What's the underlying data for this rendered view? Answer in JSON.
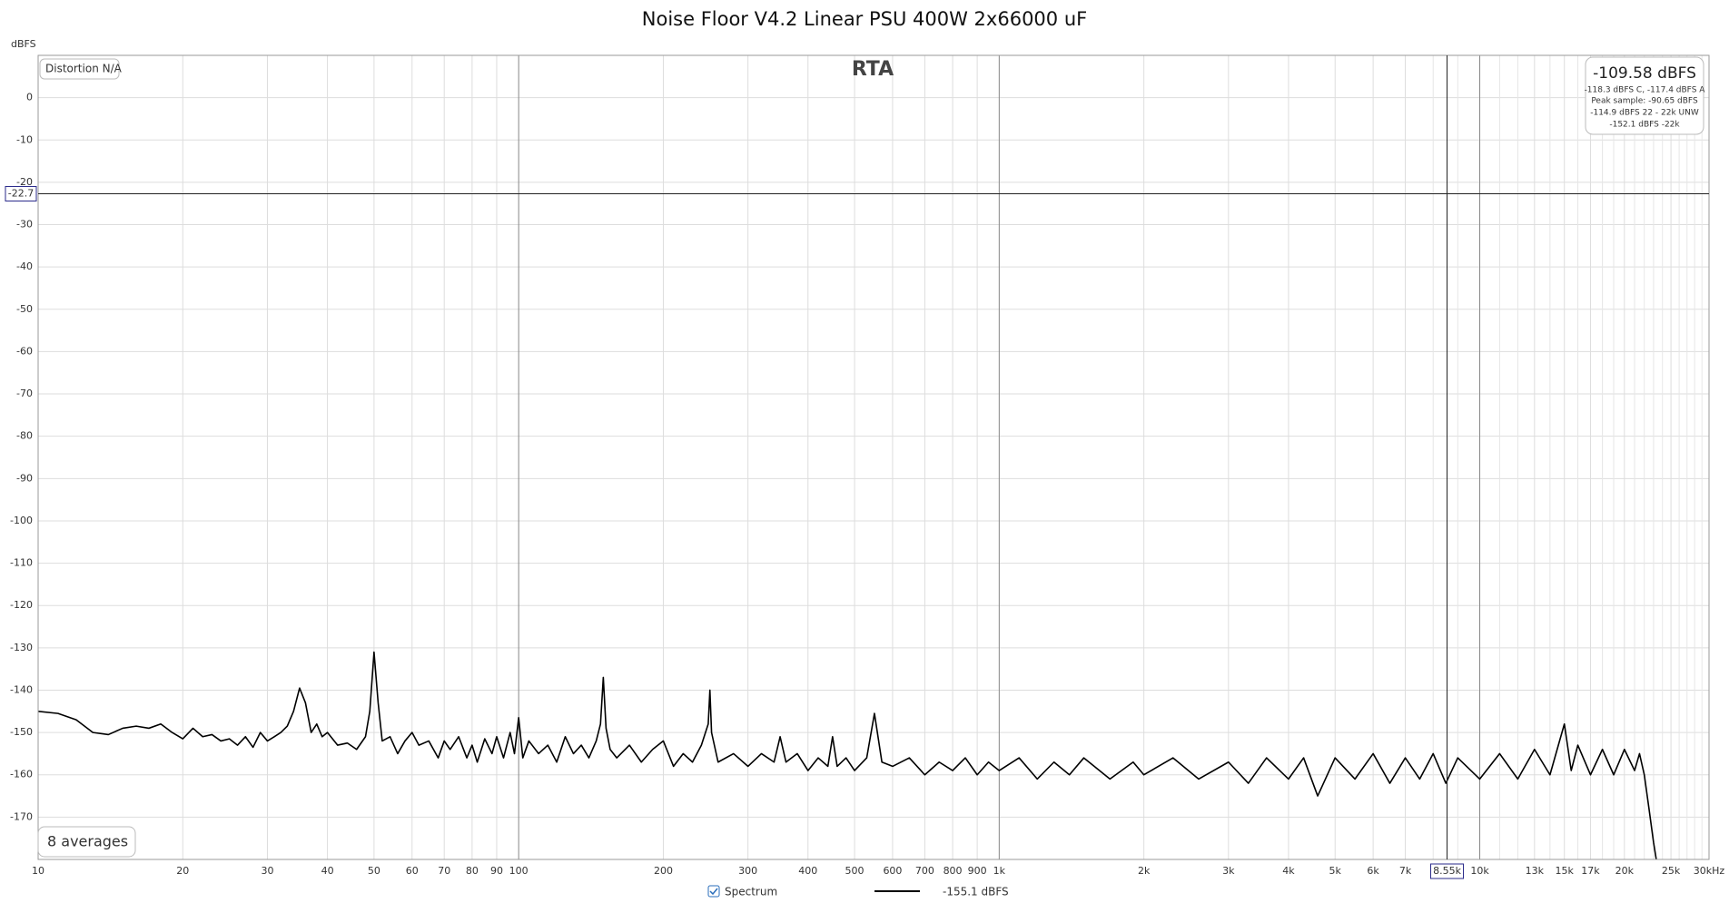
{
  "chart_data": {
    "type": "line",
    "title": "Noise Floor V4.2 Linear PSU 400W 2x66000 uF",
    "y_label": "dBFS",
    "log_x": true,
    "grid": true,
    "xlim": [
      10,
      30000
    ],
    "ylim": [
      -180,
      10
    ],
    "yticks": [
      0,
      -10,
      -20,
      -30,
      -40,
      -50,
      -60,
      -70,
      -80,
      -90,
      -100,
      -110,
      -120,
      -130,
      -140,
      -150,
      -160,
      -170
    ],
    "xticks": [
      10,
      20,
      30,
      40,
      50,
      60,
      70,
      80,
      90,
      100,
      200,
      300,
      400,
      500,
      600,
      700,
      800,
      900,
      {
        "value": 1000,
        "label": "1k"
      },
      {
        "value": 2000,
        "label": "2k"
      },
      {
        "value": 3000,
        "label": "3k"
      },
      {
        "value": 4000,
        "label": "4k"
      },
      {
        "value": 5000,
        "label": "5k"
      },
      {
        "value": 6000,
        "label": "6k"
      },
      {
        "value": 7000,
        "label": "7k"
      },
      {
        "value": 10000,
        "label": "10k"
      },
      {
        "value": 13000,
        "label": "13k"
      },
      {
        "value": 15000,
        "label": "15k"
      },
      {
        "value": 17000,
        "label": "17k"
      },
      {
        "value": 20000,
        "label": "20k"
      },
      {
        "value": 25000,
        "label": "25k"
      },
      {
        "value": 30000,
        "label": "30kHz"
      }
    ],
    "xgrid_minor": [
      8000,
      9000,
      11000,
      12000,
      14000,
      16000,
      18000,
      19000,
      21000,
      22000,
      23000,
      24000,
      26000,
      27000,
      28000,
      29000
    ],
    "cursor": {
      "x": {
        "value": 8550,
        "label": "8.55k"
      },
      "y": -22.7
    },
    "annotations": {
      "rta": "RTA",
      "distortion": "Distortion N/A",
      "averages": "8 averages",
      "level": "-109.58 dBFS",
      "weighted": "-118.3 dBFS C, -117.4 dBFS A",
      "peak": "Peak sample: -90.65 dBFS",
      "unweighted": "-114.9 dBFS 22 - 22k UNW",
      "band": "-152.1 dBFS -22k"
    },
    "legend_value": "-155.1 dBFS",
    "x": [
      10,
      11,
      12,
      13,
      14,
      15,
      16,
      17,
      18,
      19,
      20,
      21,
      22,
      23,
      24,
      25,
      26,
      27,
      28,
      29,
      30,
      31,
      32,
      33,
      34,
      35,
      36,
      37,
      38,
      39,
      40,
      42,
      44,
      46,
      48,
      49,
      50,
      51,
      52,
      54,
      56,
      58,
      60,
      62,
      65,
      68,
      70,
      72,
      75,
      78,
      80,
      82,
      85,
      88,
      90,
      93,
      96,
      98,
      100,
      102,
      105,
      110,
      115,
      120,
      125,
      130,
      135,
      140,
      145,
      148,
      150,
      152,
      155,
      160,
      170,
      180,
      190,
      200,
      210,
      220,
      230,
      240,
      248,
      250,
      252,
      260,
      280,
      300,
      320,
      340,
      350,
      360,
      380,
      400,
      420,
      440,
      450,
      460,
      480,
      500,
      530,
      550,
      570,
      600,
      650,
      700,
      750,
      800,
      850,
      900,
      950,
      1000,
      1100,
      1200,
      1300,
      1400,
      1500,
      1700,
      1900,
      2000,
      2300,
      2600,
      3000,
      3300,
      3600,
      4000,
      4300,
      4600,
      5000,
      5500,
      6000,
      6500,
      7000,
      7500,
      8000,
      8500,
      9000,
      10000,
      11000,
      12000,
      13000,
      14000,
      15000,
      15500,
      16000,
      17000,
      18000,
      19000,
      20000,
      21000,
      21500,
      22000,
      22500,
      23000,
      23300
    ],
    "series": [
      {
        "name": "Spectrum",
        "color": "#000000",
        "values": [
          -145,
          -145.5,
          -147,
          -150,
          -150.5,
          -149,
          -148.5,
          -149,
          -148,
          -150,
          -151.5,
          -149,
          -151,
          -150.5,
          -152,
          -151.5,
          -153,
          -151,
          -153.5,
          -150,
          -152,
          -151,
          -150,
          -148.5,
          -145,
          -139.5,
          -143,
          -150,
          -148,
          -151,
          -150,
          -153,
          -152.5,
          -154,
          -151,
          -145,
          -131,
          -143,
          -152,
          -151,
          -155,
          -152,
          -150,
          -153,
          -152,
          -156,
          -152,
          -154,
          -151,
          -156,
          -153,
          -157,
          -151.5,
          -155,
          -151,
          -156,
          -150,
          -155,
          -146.5,
          -156,
          -152,
          -155,
          -153,
          -157,
          -151,
          -155,
          -153,
          -156,
          -152,
          -148,
          -137,
          -149,
          -154,
          -156,
          -153,
          -157,
          -154,
          -152,
          -158,
          -155,
          -157,
          -153,
          -148,
          -140,
          -150,
          -157,
          -155,
          -158,
          -155,
          -157,
          -151,
          -157,
          -155,
          -159,
          -156,
          -158,
          -151,
          -158,
          -156,
          -159,
          -156,
          -145.5,
          -157,
          -158,
          -156,
          -160,
          -157,
          -159,
          -156,
          -160,
          -157,
          -159,
          -156,
          -161,
          -157,
          -160,
          -156,
          -161,
          -157,
          -160,
          -156,
          -161,
          -157,
          -162,
          -156,
          -161,
          -156,
          -165,
          -156,
          -161,
          -155,
          -162,
          -156,
          -161,
          -155,
          -162,
          -156,
          -161,
          -155,
          -161,
          -154,
          -160,
          -148,
          -159,
          -153,
          -160,
          -154,
          -160,
          -154,
          -159,
          -155,
          -160,
          -168,
          -176,
          -180
        ]
      }
    ]
  }
}
